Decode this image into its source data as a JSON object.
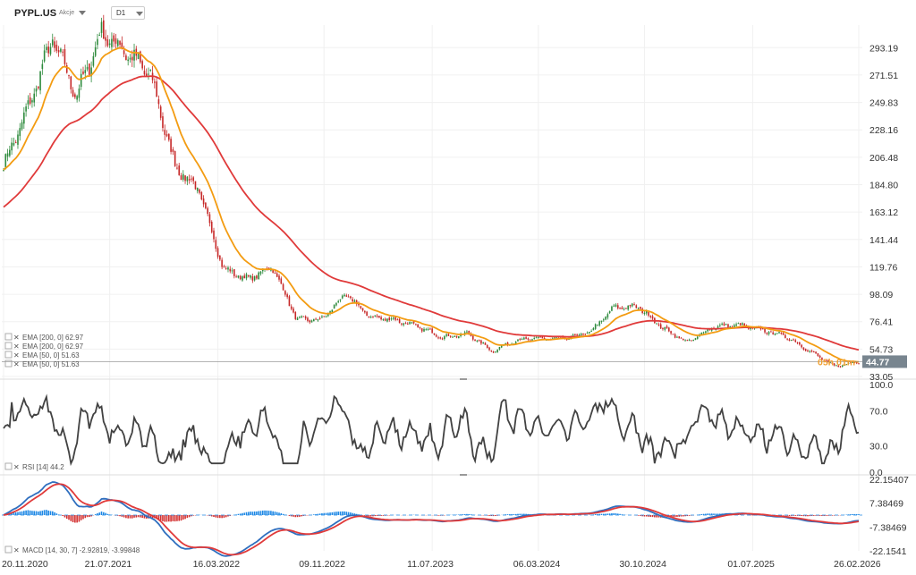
{
  "header": {
    "symbol": "PYPL.US",
    "asset_type": "Akcje",
    "timeframe": "D1"
  },
  "colors": {
    "candle_up": "#2e8b3d",
    "candle_down": "#c62828",
    "ema_short": "#f39c12",
    "ema_long": "#e03a3a",
    "rsi": "#424242",
    "macd_line": "#2f6fbf",
    "signal_line": "#e03a3a",
    "hist_pos": "#1e88e5",
    "hist_neg": "#d32f2f",
    "last_price_bg": "#78858f",
    "timer": "#f0a030"
  },
  "chart_data": [
    {
      "type": "candlestick",
      "panel": "price",
      "x_labels": [
        "20.11.2020",
        "21.07.2021",
        "16.03.2022",
        "09.11.2022",
        "11.07.2023",
        "06.03.2024",
        "30.10.2024",
        "01.07.2025",
        "26.02.2026"
      ],
      "y_ticks": [
        "293.19",
        "271.51",
        "249.83",
        "228.16",
        "206.48",
        "184.80",
        "163.12",
        "141.44",
        "119.76",
        "98.09",
        "76.41",
        "54.73",
        "33.05"
      ],
      "ylim": [
        33.05,
        304
      ],
      "price_path": [
        [
          "20.11.2020",
          200
        ],
        [
          "2021-01",
          245
        ],
        [
          "2021-02",
          300
        ],
        [
          "2021-04",
          255
        ],
        [
          "21.07.2021",
          305
        ],
        [
          "2021-09",
          290
        ],
        [
          "2021-10",
          272
        ],
        [
          "2021-11",
          200
        ],
        [
          "2022-01",
          180
        ],
        [
          "2022-02",
          118
        ],
        [
          "16.03.2022",
          110
        ],
        [
          "2022-04",
          120
        ],
        [
          "2022-05",
          78
        ],
        [
          "2022-06",
          78
        ],
        [
          "2022-08",
          98
        ],
        [
          "09.11.2022",
          80
        ],
        [
          "2023-01",
          78
        ],
        [
          "2023-03",
          72
        ],
        [
          "2023-05",
          64
        ],
        [
          "11.07.2023",
          67
        ],
        [
          "2023-10",
          53
        ],
        [
          "2023-12",
          62
        ],
        [
          "06.03.2024",
          63
        ],
        [
          "2024-06",
          63
        ],
        [
          "2024-08",
          68
        ],
        [
          "30.10.2024",
          88
        ],
        [
          "2024-12",
          88
        ],
        [
          "2025-02",
          71
        ],
        [
          "2025-04",
          60
        ],
        [
          "2025-05",
          72
        ],
        [
          "01.07.2025",
          74
        ],
        [
          "2025-09",
          70
        ],
        [
          "2025-11",
          65
        ],
        [
          "2026-01",
          53
        ],
        [
          "2026-02",
          41
        ],
        [
          "26.02.2026",
          44.77
        ]
      ],
      "last_price": "44.77",
      "countdown": "05h 01m",
      "series": [
        {
          "name": "EMA [200, 0] 62.97",
          "last": 62.97
        },
        {
          "name": "EMA [200, 0] 62.97",
          "last": 62.97
        },
        {
          "name": "EMA [50, 0] 51.63",
          "last": 51.63
        },
        {
          "name": "EMA [50, 0] 51.63",
          "last": 51.63
        }
      ]
    },
    {
      "type": "line",
      "panel": "rsi",
      "y_ticks": [
        "100.0",
        "70.0",
        "30.0",
        "0.0"
      ],
      "ylim": [
        0,
        100
      ],
      "series": [
        {
          "name": "RSI [14] 44.2",
          "last": 44.2
        }
      ]
    },
    {
      "type": "line",
      "panel": "macd",
      "y_ticks": [
        "22.15407",
        "7.38469",
        "-7.38469",
        "-22.1541"
      ],
      "ylim": [
        -22.1541,
        22.15407
      ],
      "series": [
        {
          "name": "MACD [14, 30, 7] -2.92819, -3.99848",
          "values": [
            -2.92819,
            -3.99848
          ]
        }
      ]
    }
  ]
}
